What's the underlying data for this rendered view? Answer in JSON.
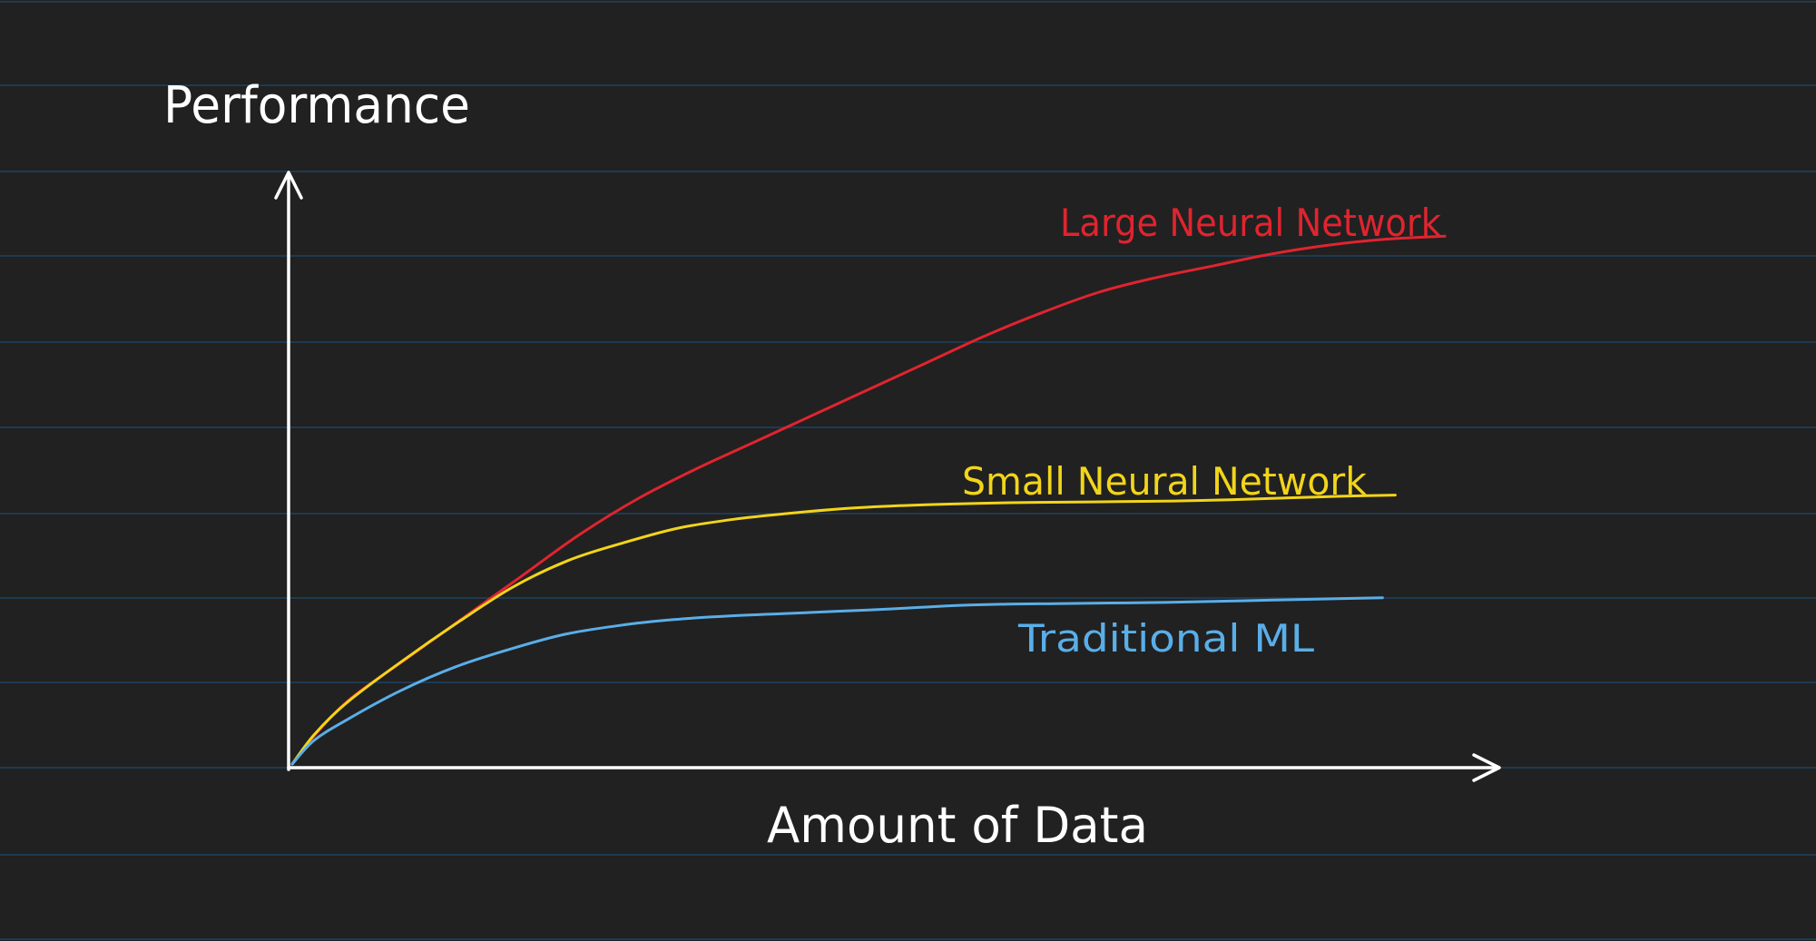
{
  "canvas": {
    "background": "#212121",
    "ruled_line_color": "#1e3a52"
  },
  "chart_data": {
    "type": "line",
    "title": "",
    "xlabel": "Amount of Data",
    "ylabel": "Performance",
    "xlim": [
      0,
      100
    ],
    "ylim": [
      0,
      100
    ],
    "grid": false,
    "axis_color": "#ffffff",
    "series": [
      {
        "name": "Large Neural Network",
        "color": "#e0242f",
        "x": [
          0,
          2,
          5,
          10,
          15,
          20,
          25,
          30,
          35,
          40,
          45,
          50,
          55,
          60,
          65,
          70,
          75,
          80,
          85,
          90,
          95,
          100
        ],
        "y": [
          0,
          5,
          11,
          18,
          25,
          32,
          39,
          45,
          50,
          54.5,
          59,
          63.5,
          68,
          72.5,
          76.5,
          80,
          82.5,
          84.5,
          86.5,
          88,
          89,
          89.5
        ]
      },
      {
        "name": "Small Neural Network",
        "color": "#f2d51a",
        "x": [
          0,
          2,
          5,
          10,
          15,
          20,
          25,
          30,
          35,
          40,
          45,
          50,
          55,
          60,
          65,
          70,
          75,
          80,
          85,
          90,
          95,
          100
        ],
        "y": [
          0,
          5,
          10.5,
          17.5,
          24,
          30,
          34.5,
          37.5,
          40,
          41.5,
          42.5,
          43.3,
          43.8,
          44.1,
          44.3,
          44.4,
          44.5,
          44.6,
          44.8,
          45.1,
          45.4,
          45.6
        ]
      },
      {
        "name": "Traditional ML",
        "color": "#5aaee8",
        "x": [
          0,
          2,
          5,
          10,
          15,
          20,
          25,
          30,
          35,
          40,
          45,
          50,
          55,
          60,
          65,
          70,
          75,
          80,
          85,
          90,
          95,
          100
        ],
        "y": [
          0,
          4,
          7.5,
          12.5,
          16.5,
          19.5,
          22,
          23.5,
          24.5,
          25.1,
          25.5,
          25.9,
          26.3,
          26.8,
          27.1,
          27.2,
          27.3,
          27.4,
          27.6,
          27.8,
          28,
          28.2
        ]
      }
    ],
    "labels": [
      {
        "text": "Large Neural Network",
        "series": "Large Neural Network"
      },
      {
        "text": "Small Neural Network",
        "series": "Small Neural Network"
      },
      {
        "text": "Traditional ML",
        "series": "Traditional ML"
      }
    ]
  }
}
